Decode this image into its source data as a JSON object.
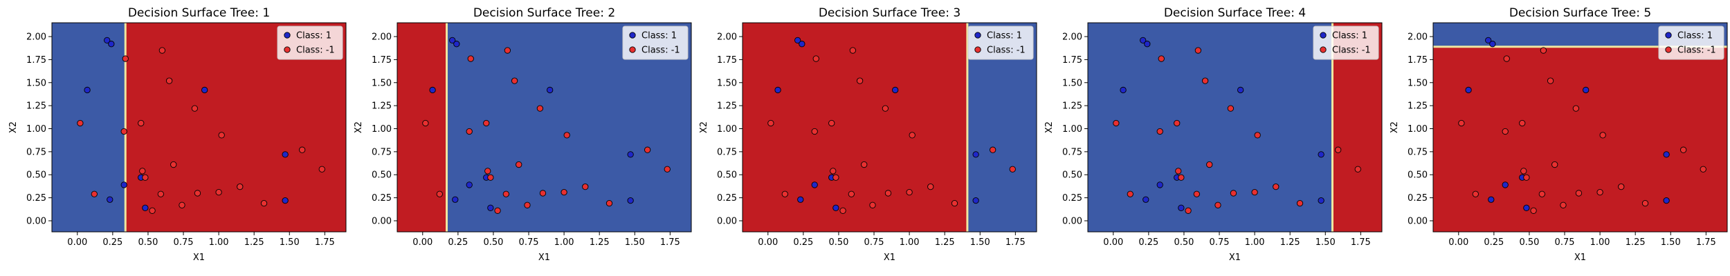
{
  "colors": {
    "class_pos_region": "#3c5aa6",
    "class_neg_region": "#c11c22",
    "boundary": "#f0e6a0",
    "class_pos_point": "#1f27c8",
    "class_neg_point": "#e83030",
    "point_edge": "#000000"
  },
  "chart_data": [
    {
      "type": "scatter",
      "title": "Decision Surface Tree: 1",
      "xlabel": "X1",
      "ylabel": "X2",
      "xlim": [
        -0.18,
        1.9
      ],
      "ylim": [
        -0.12,
        2.15
      ],
      "xticks": [
        "0.00",
        "0.25",
        "0.50",
        "0.75",
        "1.00",
        "1.25",
        "1.50",
        "1.75"
      ],
      "yticks": [
        "0.00",
        "0.25",
        "0.50",
        "0.75",
        "1.00",
        "1.25",
        "1.50",
        "1.75",
        "2.00"
      ],
      "split": {
        "axis": "x",
        "value": 0.34,
        "low_class": 1,
        "high_class": -1
      },
      "legend": {
        "position": "top-right",
        "entries": [
          "Class: 1",
          "Class: -1"
        ]
      }
    },
    {
      "type": "scatter",
      "title": "Decision Surface Tree: 2",
      "xlabel": "X1",
      "ylabel": "X2",
      "xlim": [
        -0.18,
        1.9
      ],
      "ylim": [
        -0.12,
        2.15
      ],
      "xticks": [
        "0.00",
        "0.25",
        "0.50",
        "0.75",
        "1.00",
        "1.25",
        "1.50",
        "1.75"
      ],
      "yticks": [
        "0.00",
        "0.25",
        "0.50",
        "0.75",
        "1.00",
        "1.25",
        "1.50",
        "1.75",
        "2.00"
      ],
      "split": {
        "axis": "x",
        "value": 0.17,
        "low_class": -1,
        "high_class": 1
      },
      "legend": {
        "position": "top-right",
        "entries": [
          "Class: 1",
          "Class: -1"
        ]
      }
    },
    {
      "type": "scatter",
      "title": "Decision Surface Tree: 3",
      "xlabel": "X1",
      "ylabel": "X2",
      "xlim": [
        -0.18,
        1.9
      ],
      "ylim": [
        -0.12,
        2.15
      ],
      "xticks": [
        "0.00",
        "0.25",
        "0.50",
        "0.75",
        "1.00",
        "1.25",
        "1.50",
        "1.75"
      ],
      "yticks": [
        "0.00",
        "0.25",
        "0.50",
        "0.75",
        "1.00",
        "1.25",
        "1.50",
        "1.75",
        "2.00"
      ],
      "split": {
        "axis": "x",
        "value": 1.41,
        "low_class": -1,
        "high_class": 1
      },
      "legend": {
        "position": "top-right",
        "entries": [
          "Class: 1",
          "Class: -1"
        ]
      }
    },
    {
      "type": "scatter",
      "title": "Decision Surface Tree: 4",
      "xlabel": "X1",
      "ylabel": "X2",
      "xlim": [
        -0.18,
        1.9
      ],
      "ylim": [
        -0.12,
        2.15
      ],
      "xticks": [
        "0.00",
        "0.25",
        "0.50",
        "0.75",
        "1.00",
        "1.25",
        "1.50",
        "1.75"
      ],
      "yticks": [
        "0.00",
        "0.25",
        "0.50",
        "0.75",
        "1.00",
        "1.25",
        "1.50",
        "1.75",
        "2.00"
      ],
      "split": {
        "axis": "x",
        "value": 1.55,
        "low_class": 1,
        "high_class": -1
      },
      "legend": {
        "position": "top-right",
        "entries": [
          "Class: 1",
          "Class: -1"
        ]
      }
    },
    {
      "type": "scatter",
      "title": "Decision Surface Tree: 5",
      "xlabel": "X1",
      "ylabel": "X2",
      "xlim": [
        -0.18,
        1.9
      ],
      "ylim": [
        -0.12,
        2.15
      ],
      "xticks": [
        "0.00",
        "0.25",
        "0.50",
        "0.75",
        "1.00",
        "1.25",
        "1.50",
        "1.75"
      ],
      "yticks": [
        "0.00",
        "0.25",
        "0.50",
        "0.75",
        "1.00",
        "1.25",
        "1.50",
        "1.75",
        "2.00"
      ],
      "split": {
        "axis": "y",
        "value": 1.89,
        "low_class": -1,
        "high_class": 1
      },
      "legend": {
        "position": "top-right",
        "entries": [
          "Class: 1",
          "Class: -1"
        ]
      }
    }
  ],
  "points": {
    "class_pos": [
      [
        0.07,
        1.42
      ],
      [
        0.21,
        1.96
      ],
      [
        0.24,
        1.92
      ],
      [
        0.9,
        1.42
      ],
      [
        0.23,
        0.23
      ],
      [
        0.33,
        0.39
      ],
      [
        0.45,
        0.47
      ],
      [
        0.48,
        0.14
      ],
      [
        1.47,
        0.72
      ],
      [
        1.47,
        0.22
      ]
    ],
    "class_neg": [
      [
        0.6,
        1.85
      ],
      [
        0.65,
        1.52
      ],
      [
        0.34,
        1.76
      ],
      [
        0.83,
        1.22
      ],
      [
        0.02,
        1.06
      ],
      [
        0.33,
        0.97
      ],
      [
        0.45,
        1.06
      ],
      [
        1.02,
        0.93
      ],
      [
        0.12,
        0.29
      ],
      [
        0.46,
        0.54
      ],
      [
        0.48,
        0.47
      ],
      [
        0.68,
        0.61
      ],
      [
        0.53,
        0.11
      ],
      [
        0.59,
        0.29
      ],
      [
        0.74,
        0.17
      ],
      [
        0.85,
        0.3
      ],
      [
        1.0,
        0.31
      ],
      [
        1.15,
        0.37
      ],
      [
        1.32,
        0.19
      ],
      [
        1.59,
        0.77
      ],
      [
        1.73,
        0.56
      ]
    ]
  }
}
